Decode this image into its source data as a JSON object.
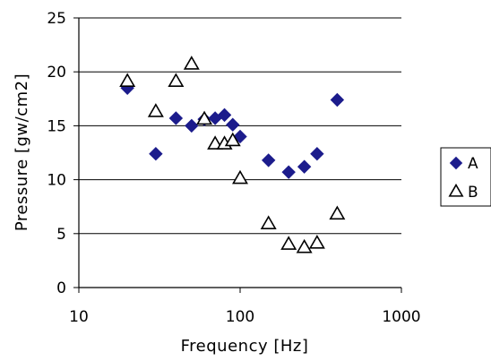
{
  "chart_data": {
    "type": "scatter",
    "title": "",
    "xlabel": "Frequency [Hz]",
    "ylabel": "Pressure [gw/cm2]",
    "xscale": "log",
    "xlim": [
      10,
      1000
    ],
    "ylim": [
      0,
      25
    ],
    "x_ticks": [
      "10",
      "100",
      "1000"
    ],
    "y_ticks": [
      "0",
      "5",
      "10",
      "15",
      "20",
      "25"
    ],
    "grid": "horizontal",
    "legend": "right",
    "series": [
      {
        "name": "A",
        "marker": "filled-diamond",
        "color": "#1c1c8c",
        "points": [
          [
            20,
            18.5
          ],
          [
            30,
            12.4
          ],
          [
            40,
            15.7
          ],
          [
            50,
            15.0
          ],
          [
            60,
            15.6
          ],
          [
            70,
            15.7
          ],
          [
            80,
            16.0
          ],
          [
            90,
            15.1
          ],
          [
            100,
            14.0
          ],
          [
            150,
            11.8
          ],
          [
            200,
            10.7
          ],
          [
            250,
            11.2
          ],
          [
            300,
            12.4
          ],
          [
            400,
            17.4
          ]
        ]
      },
      {
        "name": "B",
        "marker": "open-triangle",
        "color": "#000000",
        "points": [
          [
            20,
            19.1
          ],
          [
            30,
            16.3
          ],
          [
            40,
            19.1
          ],
          [
            50,
            20.7
          ],
          [
            60,
            15.6
          ],
          [
            70,
            13.3
          ],
          [
            80,
            13.3
          ],
          [
            90,
            13.6
          ],
          [
            100,
            10.1
          ],
          [
            150,
            5.9
          ],
          [
            200,
            4.0
          ],
          [
            250,
            3.7
          ],
          [
            300,
            4.1
          ],
          [
            400,
            6.8
          ]
        ]
      }
    ]
  }
}
